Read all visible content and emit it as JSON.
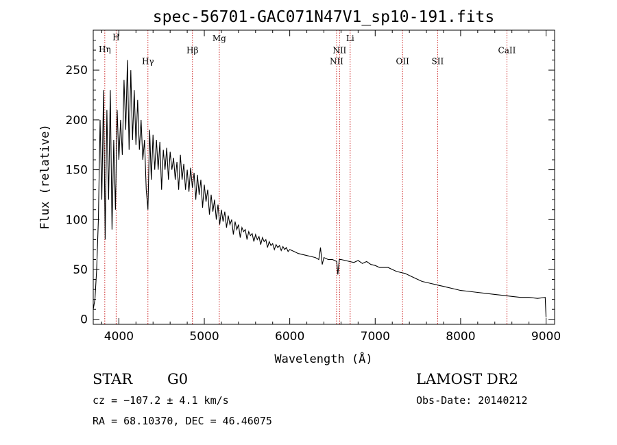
{
  "chart_data": {
    "type": "line",
    "title": "spec-56701-GAC071N47V1_sp10-191.fits",
    "xlabel": "Wavelength (Å)",
    "ylabel": "Flux (relative)",
    "xlim": [
      3700,
      9100
    ],
    "ylim": [
      -5,
      290
    ],
    "xticks": [
      4000,
      5000,
      6000,
      7000,
      8000,
      9000
    ],
    "xtick_labels": [
      "4000",
      "5000",
      "6000",
      "7000",
      "8000",
      "9000"
    ],
    "yticks": [
      0,
      50,
      100,
      150,
      200,
      250
    ],
    "ytick_labels": [
      "0",
      "50",
      "100",
      "150",
      "200",
      "250"
    ],
    "x_minor_step": 200,
    "y_minor_step": 10,
    "grid": false,
    "line_color": "#000000",
    "marker_color": "#cc2222",
    "spectral_lines": [
      {
        "name": "Hη",
        "wavelength": 3835,
        "label_y": 268
      },
      {
        "name": "H",
        "wavelength": 3968,
        "label_y": 280
      },
      {
        "name": "Hγ",
        "wavelength": 4340,
        "label_y": 256
      },
      {
        "name": "Hβ",
        "wavelength": 4861,
        "label_y": 267
      },
      {
        "name": "Mg",
        "wavelength": 5175,
        "label_y": 279
      },
      {
        "name": "NII",
        "wavelength": 6548,
        "label_y": 256
      },
      {
        "name": "NII",
        "wavelength": 6583,
        "label_y": 267
      },
      {
        "name": "Li",
        "wavelength": 6707,
        "label_y": 279
      },
      {
        "name": "OII",
        "wavelength": 7320,
        "label_y": 256
      },
      {
        "name": "SII",
        "wavelength": 7731,
        "label_y": 256
      },
      {
        "name": "CaII",
        "wavelength": 8542,
        "label_y": 267
      }
    ],
    "series": [
      {
        "x": [
          3700,
          3720,
          3740,
          3760,
          3780,
          3800,
          3820,
          3840,
          3860,
          3880,
          3900,
          3920,
          3940,
          3960,
          3980,
          4000,
          4020,
          4040,
          4060,
          4080,
          4100,
          4120,
          4140,
          4160,
          4180,
          4200,
          4220,
          4240,
          4260,
          4280,
          4300,
          4320,
          4340,
          4360,
          4380,
          4400,
          4420,
          4440,
          4460,
          4480,
          4500,
          4520,
          4540,
          4560,
          4580,
          4600,
          4620,
          4640,
          4660,
          4680,
          4700,
          4720,
          4740,
          4760,
          4780,
          4800,
          4820,
          4840,
          4860,
          4880,
          4900,
          4920,
          4940,
          4960,
          4980,
          5000,
          5020,
          5040,
          5060,
          5080,
          5100,
          5120,
          5140,
          5160,
          5180,
          5200,
          5220,
          5240,
          5260,
          5280,
          5300,
          5320,
          5340,
          5360,
          5380,
          5400,
          5420,
          5440,
          5460,
          5480,
          5500,
          5520,
          5540,
          5560,
          5580,
          5600,
          5620,
          5640,
          5660,
          5680,
          5700,
          5720,
          5740,
          5760,
          5780,
          5800,
          5820,
          5840,
          5860,
          5880,
          5900,
          5920,
          5940,
          5960,
          5980,
          6000,
          6050,
          6100,
          6150,
          6200,
          6250,
          6300,
          6340,
          6360,
          6380,
          6400,
          6450,
          6500,
          6550,
          6563,
          6580,
          6600,
          6650,
          6700,
          6750,
          6800,
          6850,
          6900,
          6950,
          7000,
          7050,
          7100,
          7150,
          7200,
          7250,
          7300,
          7350,
          7400,
          7450,
          7500,
          7550,
          7600,
          7650,
          7700,
          7750,
          7800,
          7850,
          7900,
          7950,
          8000,
          8100,
          8200,
          8300,
          8400,
          8500,
          8600,
          8700,
          8800,
          8900,
          8990,
          9000
        ],
        "y": [
          10,
          20,
          50,
          100,
          200,
          120,
          230,
          80,
          210,
          120,
          230,
          90,
          180,
          110,
          210,
          160,
          200,
          165,
          240,
          190,
          260,
          170,
          250,
          180,
          230,
          175,
          220,
          170,
          200,
          160,
          180,
          130,
          110,
          190,
          140,
          185,
          150,
          180,
          150,
          178,
          130,
          170,
          150,
          172,
          140,
          168,
          150,
          162,
          140,
          158,
          130,
          165,
          140,
          156,
          130,
          150,
          128,
          152,
          132,
          147,
          120,
          145,
          125,
          140,
          112,
          135,
          118,
          130,
          105,
          125,
          108,
          120,
          100,
          115,
          95,
          110,
          98,
          108,
          92,
          104,
          95,
          100,
          85,
          98,
          90,
          95,
          82,
          92,
          88,
          90,
          80,
          88,
          84,
          86,
          78,
          85,
          80,
          83,
          75,
          82,
          78,
          80,
          72,
          78,
          74,
          76,
          70,
          75,
          72,
          74,
          69,
          73,
          70,
          72,
          68,
          70,
          68,
          66,
          65,
          64,
          63,
          62,
          60,
          72,
          55,
          62,
          60,
          60,
          58,
          45,
          60,
          60,
          59,
          58,
          57,
          59,
          56,
          58,
          55,
          54,
          52,
          52,
          52,
          50,
          48,
          47,
          46,
          44,
          42,
          40,
          38,
          37,
          36,
          35,
          34,
          33,
          32,
          31,
          30,
          29,
          28,
          27,
          26,
          25,
          24,
          23,
          22,
          22,
          21,
          22,
          2
        ]
      }
    ]
  },
  "info": {
    "class": "STAR",
    "subclass": "G0",
    "survey": "LAMOST DR2",
    "cz": "cz = −107.2 ± 4.1 km/s",
    "obs_date": "Obs-Date: 20140212",
    "radec": "RA =  68.10370, DEC =  46.46075"
  }
}
